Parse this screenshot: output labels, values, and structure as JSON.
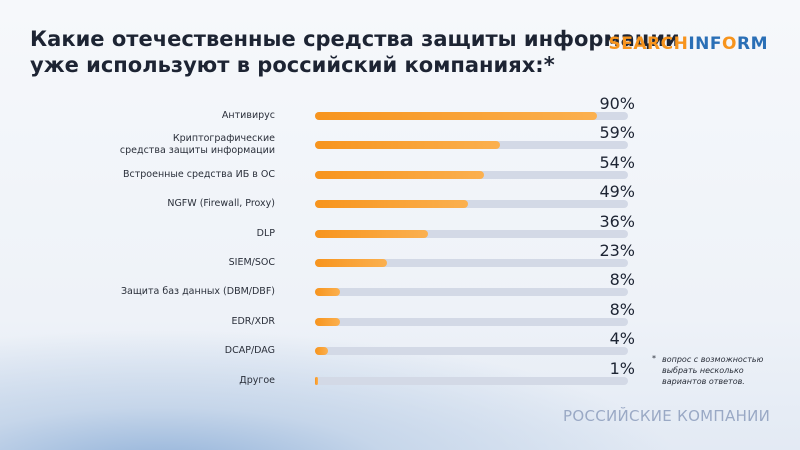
{
  "chart_data": {
    "type": "bar",
    "orientation": "horizontal",
    "title": "Какие отечественные средства защиты информации\nуже используют в российский компаниях:*",
    "logo": [
      "SEARCH",
      "INF",
      "O",
      "RM"
    ],
    "categories": [
      "Антивирус",
      "Криптографические\nсредства защиты информации",
      "Встроенные средства ИБ в ОС",
      "NGFW (Firewall, Proxy)",
      "DLP",
      "SIEM/SOC",
      "Защита баз данных (DBM/DBF)",
      "EDR/XDR",
      "DCAP/DAG",
      "Другое"
    ],
    "values": [
      90,
      59,
      54,
      49,
      36,
      23,
      8,
      8,
      4,
      1
    ],
    "value_labels": [
      "90%",
      "59%",
      "54%",
      "49%",
      "36%",
      "23%",
      "8%",
      "8%",
      "4%",
      "1%"
    ],
    "color": "#f7941d",
    "track_color": "#d3d9e6",
    "xlim": [
      0,
      100
    ],
    "footnote_marker": "*",
    "footnote": "вопрос с возможностью выбрать несколько вариантов ответов.",
    "caption": "РОССИЙСКИЕ КОМПАНИИ"
  }
}
